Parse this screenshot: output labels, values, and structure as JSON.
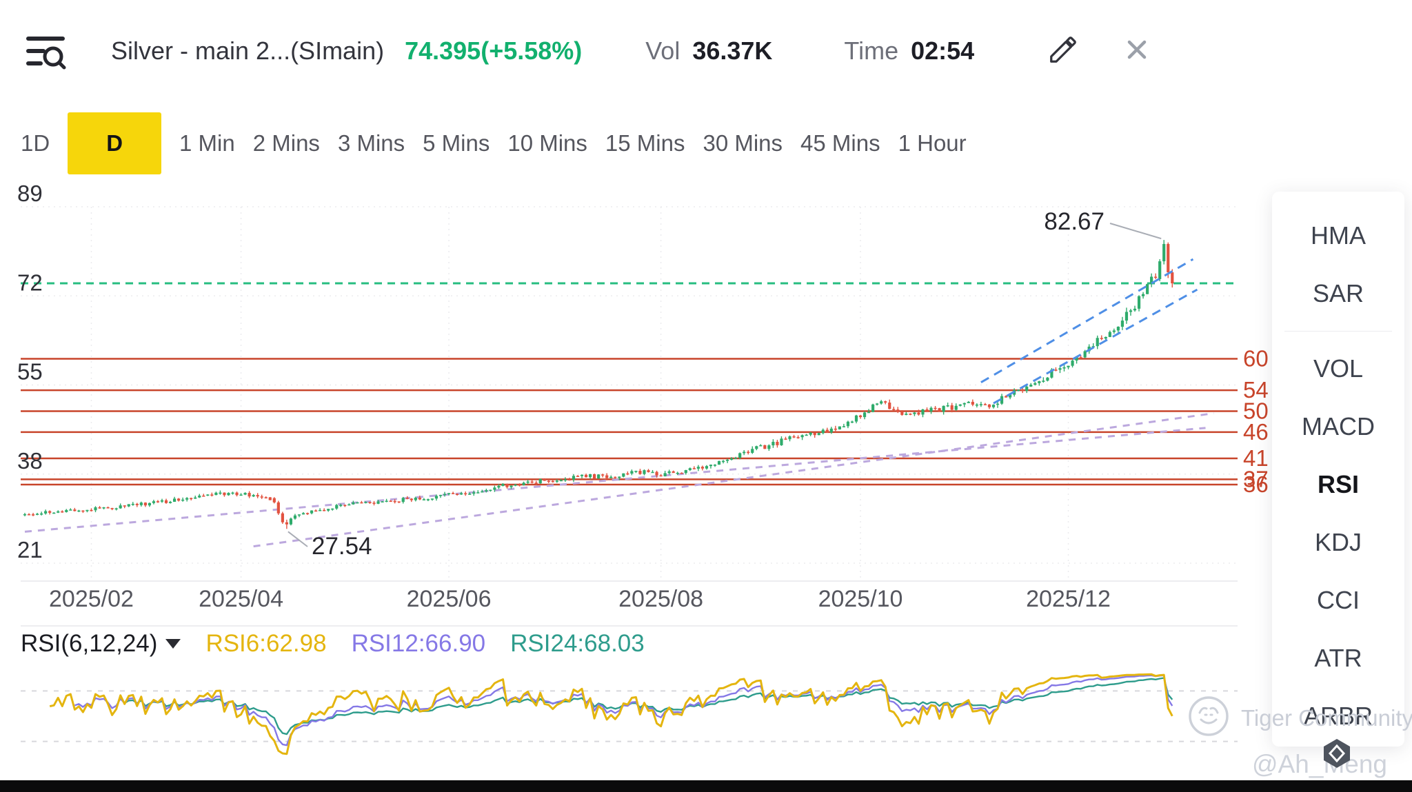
{
  "header": {
    "title": "Silver - main 2...(SImain)",
    "price": "74.395(+5.58%)",
    "vol_label": "Vol",
    "vol_value": "36.37K",
    "time_label": "Time",
    "time_value": "02:54"
  },
  "tabs": {
    "items": [
      "1D",
      "D",
      "1 Min",
      "2 Mins",
      "3 Mins",
      "5 Mins",
      "10 Mins",
      "15 Mins",
      "30 Mins",
      "45 Mins",
      "1 Hour"
    ],
    "active": "D"
  },
  "sidebar": {
    "overlays": [
      "HMA",
      "SAR"
    ],
    "indicators": [
      "VOL",
      "MACD",
      "RSI",
      "KDJ",
      "CCI",
      "ATR",
      "ARBR"
    ],
    "active": "RSI"
  },
  "rsi_header": {
    "label": "RSI(6,12,24)",
    "rsi6": "RSI6:62.98",
    "rsi12": "RSI12:66.90",
    "rsi24": "RSI24:68.03"
  },
  "watermark": {
    "community": "Tiger Community",
    "user": "@Ah_Meng"
  },
  "ui_colors": {
    "tab_active_bg": "#F6D60B",
    "price_up": "#12B06E"
  },
  "chart_data": {
    "type": "candlestick",
    "title": "Silver - main 2...(SImain) daily candles",
    "y_ticks": [
      89,
      72,
      55,
      38,
      21
    ],
    "ylim": [
      21,
      89
    ],
    "x_ticks": [
      {
        "label": "2025/02",
        "index": 16
      },
      {
        "label": "2025/04",
        "index": 52
      },
      {
        "label": "2025/06",
        "index": 102
      },
      {
        "label": "2025/08",
        "index": 153
      },
      {
        "label": "2025/10",
        "index": 201
      },
      {
        "label": "2025/12",
        "index": 251
      }
    ],
    "price_line": 74.395,
    "resistance_levels": [
      60,
      54,
      50,
      46,
      41,
      37,
      36
    ],
    "annotations": [
      {
        "text": "82.67",
        "index": 274,
        "price": 82.67
      },
      {
        "text": "27.54",
        "index": 63,
        "price": 27.54
      }
    ],
    "candle_count": 277,
    "trend_anchors": [
      [
        0,
        30.3
      ],
      [
        8,
        30.8
      ],
      [
        16,
        31.2
      ],
      [
        24,
        31.8
      ],
      [
        32,
        32.6
      ],
      [
        40,
        33.2
      ],
      [
        48,
        34.3
      ],
      [
        54,
        34.0
      ],
      [
        58,
        33.4
      ],
      [
        60,
        33.2
      ],
      [
        66,
        29.8
      ],
      [
        72,
        31.2
      ],
      [
        80,
        32.4
      ],
      [
        88,
        32.9
      ],
      [
        96,
        33.3
      ],
      [
        104,
        34.1
      ],
      [
        112,
        35.2
      ],
      [
        120,
        36.2
      ],
      [
        128,
        36.9
      ],
      [
        136,
        37.5
      ],
      [
        144,
        37.7
      ],
      [
        150,
        38.6
      ],
      [
        154,
        37.9
      ],
      [
        160,
        38.6
      ],
      [
        168,
        40.4
      ],
      [
        176,
        42.6
      ],
      [
        184,
        44.5
      ],
      [
        192,
        45.9
      ],
      [
        198,
        47.3
      ],
      [
        203,
        49.8
      ],
      [
        207,
        52.3
      ],
      [
        210,
        50.4
      ],
      [
        214,
        49.3
      ],
      [
        219,
        50.1
      ],
      [
        224,
        50.8
      ],
      [
        228,
        51.9
      ],
      [
        232,
        51.0
      ],
      [
        236,
        52.3
      ],
      [
        241,
        54.2
      ],
      [
        246,
        56.3
      ],
      [
        251,
        58.7
      ],
      [
        256,
        61.5
      ],
      [
        260,
        64.0
      ],
      [
        264,
        66.8
      ],
      [
        267,
        69.3
      ],
      [
        270,
        72.5
      ],
      [
        272,
        75.0
      ],
      [
        276,
        74.6
      ]
    ],
    "key_candles": [
      {
        "i": 60,
        "o": 33.4,
        "h": 33.6,
        "l": 32.4,
        "c": 32.6
      },
      {
        "i": 61,
        "o": 32.6,
        "h": 32.9,
        "l": 30.2,
        "c": 30.5
      },
      {
        "i": 62,
        "o": 30.5,
        "h": 30.8,
        "l": 28.5,
        "c": 28.8
      },
      {
        "i": 63,
        "o": 28.8,
        "h": 29.3,
        "l": 27.54,
        "c": 28.4
      },
      {
        "i": 64,
        "o": 28.4,
        "h": 29.7,
        "l": 28.2,
        "c": 29.5
      },
      {
        "i": 65,
        "o": 29.5,
        "h": 30.4,
        "l": 29.3,
        "c": 30.1
      },
      {
        "i": 273,
        "o": 75.2,
        "h": 79.0,
        "l": 74.8,
        "c": 78.6
      },
      {
        "i": 274,
        "o": 78.6,
        "h": 82.67,
        "l": 78.0,
        "c": 81.9
      },
      {
        "i": 275,
        "o": 81.9,
        "h": 82.2,
        "l": 75.4,
        "c": 76.5
      },
      {
        "i": 276,
        "o": 76.5,
        "h": 77.1,
        "l": 73.6,
        "c": 74.395
      }
    ],
    "trendlines": {
      "purple": [
        [
          [
            0,
            27.0
          ],
          [
            284,
            46.8
          ]
        ],
        [
          [
            55,
            24.2
          ],
          [
            286,
            49.6
          ]
        ]
      ],
      "blue": [
        [
          [
            230,
            55.5
          ],
          [
            281,
            79.0
          ]
        ],
        [
          [
            233,
            51.5
          ],
          [
            282,
            73.2
          ]
        ]
      ]
    },
    "rsi": {
      "periods": [
        6,
        12,
        24
      ],
      "bounds": [
        80,
        20
      ]
    },
    "colors": {
      "up": "#2EAB6B",
      "down": "#E2523F",
      "price_line": "#27BD80",
      "resistance": "#C8442A",
      "purple": "#BCA8DE",
      "blue": "#4F8FE6",
      "rsi6": "#E4B50F",
      "rsi12": "#8578E6",
      "rsi24": "#2E9C8C"
    }
  }
}
